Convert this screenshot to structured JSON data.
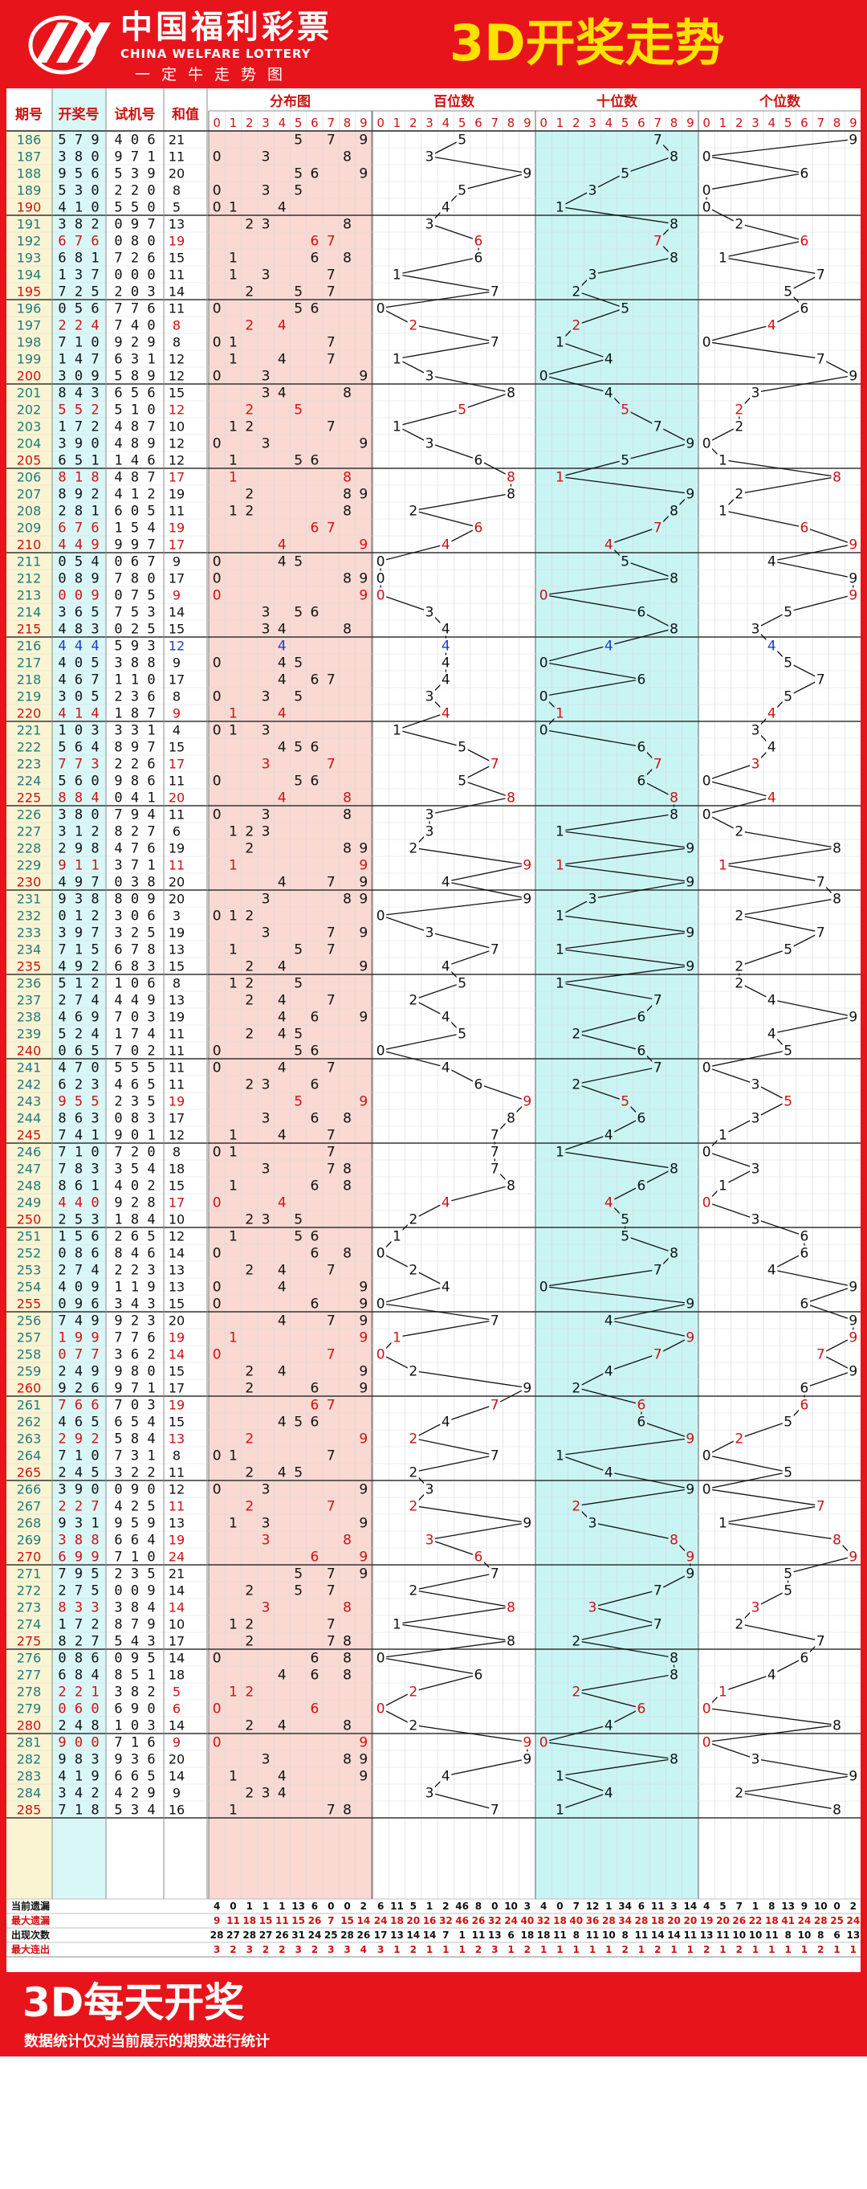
{
  "header": {
    "brand_cn": "中国福利彩票",
    "brand_en": "CHINA WELFARE LOTTERY",
    "motto": "一定牛走势图",
    "title": "3D开奖走势"
  },
  "footer": {
    "title": "3D每天开奖",
    "note": "数据统计仅对当前展示的期数进行统计"
  },
  "colors": {
    "brand_red": "#e8141b",
    "title_yellow": "#ffe100",
    "trial_blue": "#1a3cc8",
    "period_teal": "#1a7a86",
    "dist_band": "#fad9d3",
    "tens_band": "#c9f4f4",
    "draw_band": "#d9f7f7",
    "line_black": "#111111"
  },
  "chart_data": {
    "type": "table",
    "columns": {
      "period": "期号",
      "draw": "开奖号",
      "trial": "试机号",
      "sum": "和值",
      "dist": "分布图",
      "hundreds": "百位数",
      "tens": "十位数",
      "units": "个位数"
    },
    "digits": [
      "0",
      "1",
      "2",
      "3",
      "4",
      "5",
      "6",
      "7",
      "8",
      "9"
    ],
    "rows": [
      [
        "186",
        "579",
        "406",
        "21"
      ],
      [
        "187",
        "380",
        "971",
        "11"
      ],
      [
        "188",
        "956",
        "539",
        "20"
      ],
      [
        "189",
        "530",
        "220",
        "8"
      ],
      [
        "190",
        "410",
        "550",
        "5"
      ],
      [
        "191",
        "382",
        "097",
        "13"
      ],
      [
        "192",
        "676",
        "080",
        "19"
      ],
      [
        "193",
        "681",
        "726",
        "15"
      ],
      [
        "194",
        "137",
        "000",
        "11"
      ],
      [
        "195",
        "725",
        "203",
        "14"
      ],
      [
        "196",
        "056",
        "776",
        "11"
      ],
      [
        "197",
        "224",
        "740",
        "8"
      ],
      [
        "198",
        "710",
        "929",
        "8"
      ],
      [
        "199",
        "147",
        "631",
        "12"
      ],
      [
        "200",
        "309",
        "589",
        "12"
      ],
      [
        "201",
        "843",
        "656",
        "15"
      ],
      [
        "202",
        "552",
        "510",
        "12"
      ],
      [
        "203",
        "172",
        "487",
        "10"
      ],
      [
        "204",
        "390",
        "489",
        "12"
      ],
      [
        "205",
        "651",
        "146",
        "12"
      ],
      [
        "206",
        "818",
        "487",
        "17"
      ],
      [
        "207",
        "892",
        "412",
        "19"
      ],
      [
        "208",
        "281",
        "605",
        "11"
      ],
      [
        "209",
        "676",
        "154",
        "19"
      ],
      [
        "210",
        "449",
        "997",
        "17"
      ],
      [
        "211",
        "054",
        "067",
        "9"
      ],
      [
        "212",
        "089",
        "780",
        "17"
      ],
      [
        "213",
        "009",
        "075",
        "9"
      ],
      [
        "214",
        "365",
        "753",
        "14"
      ],
      [
        "215",
        "483",
        "025",
        "15"
      ],
      [
        "216",
        "444",
        "593",
        "12"
      ],
      [
        "217",
        "405",
        "388",
        "9"
      ],
      [
        "218",
        "467",
        "110",
        "17"
      ],
      [
        "219",
        "305",
        "236",
        "8"
      ],
      [
        "220",
        "414",
        "187",
        "9"
      ],
      [
        "221",
        "103",
        "331",
        "4"
      ],
      [
        "222",
        "564",
        "897",
        "15"
      ],
      [
        "223",
        "773",
        "226",
        "17"
      ],
      [
        "224",
        "560",
        "986",
        "11"
      ],
      [
        "225",
        "884",
        "041",
        "20"
      ],
      [
        "226",
        "380",
        "794",
        "11"
      ],
      [
        "227",
        "312",
        "827",
        "6"
      ],
      [
        "228",
        "298",
        "476",
        "19"
      ],
      [
        "229",
        "911",
        "371",
        "11"
      ],
      [
        "230",
        "497",
        "038",
        "20"
      ],
      [
        "231",
        "938",
        "809",
        "20"
      ],
      [
        "232",
        "012",
        "306",
        "3"
      ],
      [
        "233",
        "397",
        "325",
        "19"
      ],
      [
        "234",
        "715",
        "678",
        "13"
      ],
      [
        "235",
        "492",
        "683",
        "15"
      ],
      [
        "236",
        "512",
        "106",
        "8"
      ],
      [
        "237",
        "274",
        "449",
        "13"
      ],
      [
        "238",
        "469",
        "703",
        "19"
      ],
      [
        "239",
        "524",
        "174",
        "11"
      ],
      [
        "240",
        "065",
        "702",
        "11"
      ],
      [
        "241",
        "470",
        "555",
        "11"
      ],
      [
        "242",
        "623",
        "465",
        "11"
      ],
      [
        "243",
        "955",
        "235",
        "19"
      ],
      [
        "244",
        "863",
        "083",
        "17"
      ],
      [
        "245",
        "741",
        "901",
        "12"
      ],
      [
        "246",
        "710",
        "720",
        "8"
      ],
      [
        "247",
        "783",
        "354",
        "18"
      ],
      [
        "248",
        "861",
        "402",
        "15"
      ],
      [
        "249",
        "440",
        "928",
        "17"
      ],
      [
        "250",
        "253",
        "184",
        "10"
      ],
      [
        "251",
        "156",
        "265",
        "12"
      ],
      [
        "252",
        "086",
        "846",
        "14"
      ],
      [
        "253",
        "274",
        "223",
        "13"
      ],
      [
        "254",
        "409",
        "119",
        "13"
      ],
      [
        "255",
        "096",
        "343",
        "15"
      ],
      [
        "256",
        "749",
        "923",
        "20"
      ],
      [
        "257",
        "199",
        "776",
        "19"
      ],
      [
        "258",
        "077",
        "362",
        "14"
      ],
      [
        "259",
        "249",
        "980",
        "15"
      ],
      [
        "260",
        "926",
        "971",
        "17"
      ],
      [
        "261",
        "766",
        "703",
        "19"
      ],
      [
        "262",
        "465",
        "654",
        "15"
      ],
      [
        "263",
        "292",
        "584",
        "13"
      ],
      [
        "264",
        "710",
        "731",
        "8"
      ],
      [
        "265",
        "245",
        "322",
        "11"
      ],
      [
        "266",
        "390",
        "090",
        "12"
      ],
      [
        "267",
        "227",
        "425",
        "11"
      ],
      [
        "268",
        "931",
        "959",
        "13"
      ],
      [
        "269",
        "388",
        "664",
        "19"
      ],
      [
        "270",
        "699",
        "710",
        "24"
      ],
      [
        "271",
        "795",
        "235",
        "21"
      ],
      [
        "272",
        "275",
        "009",
        "14"
      ],
      [
        "273",
        "833",
        "384",
        "14"
      ],
      [
        "274",
        "172",
        "879",
        "10"
      ],
      [
        "275",
        "827",
        "543",
        "17"
      ],
      [
        "276",
        "086",
        "095",
        "14"
      ],
      [
        "277",
        "684",
        "851",
        "18"
      ],
      [
        "278",
        "221",
        "382",
        "5"
      ],
      [
        "279",
        "060",
        "690",
        "6"
      ],
      [
        "280",
        "248",
        "103",
        "14"
      ],
      [
        "281",
        "900",
        "716",
        "9"
      ],
      [
        "282",
        "983",
        "936",
        "20"
      ],
      [
        "283",
        "419",
        "665",
        "14"
      ],
      [
        "284",
        "342",
        "429",
        "9"
      ],
      [
        "285",
        "718",
        "534",
        "16"
      ]
    ],
    "stats": [
      {
        "label": "当前遗漏",
        "color": "#111111",
        "values": [
          "4",
          "0",
          "1",
          "1",
          "1",
          "13",
          "6",
          "0",
          "0",
          "2",
          "6",
          "11",
          "5",
          "1",
          "2",
          "46",
          "8",
          "0",
          "10",
          "3",
          "4",
          "0",
          "7",
          "12",
          "1",
          "34",
          "6",
          "11",
          "3",
          "14",
          "4",
          "5",
          "7",
          "1",
          "8",
          "13",
          "9",
          "10",
          "0",
          "2"
        ]
      },
      {
        "label": "最大遗漏",
        "color": "#d01010",
        "values": [
          "9",
          "11",
          "18",
          "15",
          "11",
          "15",
          "26",
          "7",
          "15",
          "14",
          "24",
          "18",
          "20",
          "16",
          "32",
          "46",
          "26",
          "32",
          "24",
          "40",
          "32",
          "18",
          "40",
          "36",
          "28",
          "34",
          "28",
          "18",
          "20",
          "20",
          "19",
          "20",
          "26",
          "22",
          "18",
          "41",
          "24",
          "28",
          "25",
          "24"
        ]
      },
      {
        "label": "出现次数",
        "color": "#111111",
        "values": [
          "28",
          "27",
          "28",
          "27",
          "26",
          "31",
          "24",
          "25",
          "28",
          "26",
          "17",
          "13",
          "14",
          "14",
          "7",
          "1",
          "11",
          "13",
          "6",
          "18",
          "18",
          "11",
          "8",
          "11",
          "10",
          "8",
          "11",
          "14",
          "14",
          "11",
          "13",
          "11",
          "10",
          "10",
          "11",
          "8",
          "10",
          "8",
          "6",
          "13"
        ]
      },
      {
        "label": "最大连出",
        "color": "#d01010",
        "values": [
          "3",
          "2",
          "3",
          "2",
          "2",
          "3",
          "2",
          "3",
          "3",
          "4",
          "3",
          "1",
          "2",
          "1",
          "1",
          "1",
          "2",
          "3",
          "1",
          "2",
          "1",
          "1",
          "1",
          "1",
          "1",
          "2",
          "1",
          "2",
          "1",
          "1",
          "2",
          "1",
          "2",
          "1",
          "1",
          "1",
          "1",
          "2",
          "1",
          "1"
        ]
      }
    ]
  }
}
